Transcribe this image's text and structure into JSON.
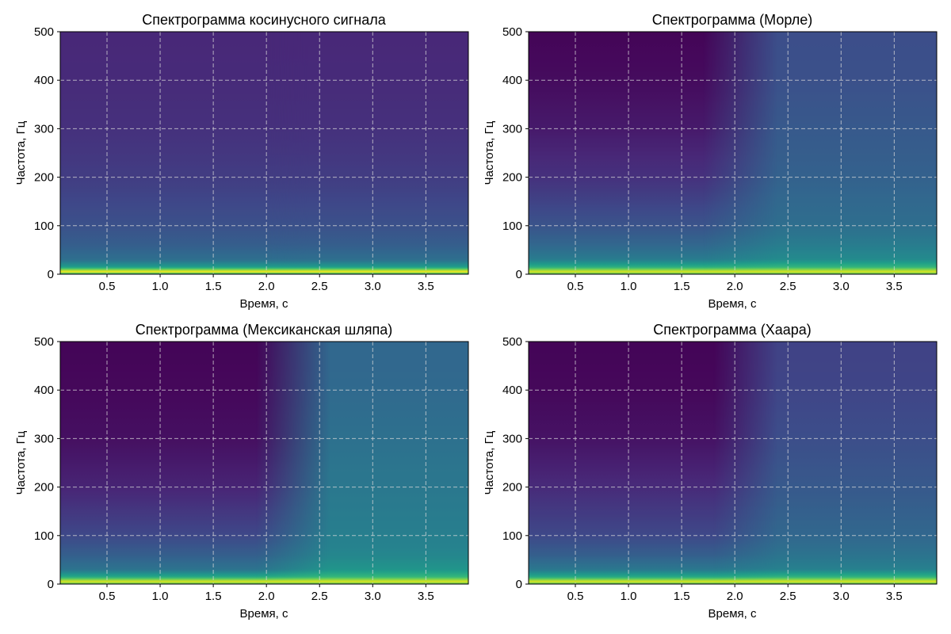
{
  "figure": {
    "colormap": "viridis",
    "colors": {
      "viridis": [
        "#440154",
        "#482878",
        "#3e4989",
        "#31688e",
        "#26828e",
        "#1f9e89",
        "#35b779",
        "#6ece58",
        "#b5de2b",
        "#fde725"
      ],
      "grid": "#d9d9d9",
      "axis": "#000000"
    }
  },
  "chart_data": [
    {
      "type": "heatmap",
      "title": "Спектрограмма косинусного сигнала",
      "xlabel": "Время, с",
      "ylabel": "Частота, Гц",
      "xlim": [
        0.06,
        3.9
      ],
      "ylim": [
        0,
        500
      ],
      "xticks": [
        "0.5",
        "1.0",
        "1.5",
        "2.0",
        "2.5",
        "3.0",
        "3.5"
      ],
      "yticks": [
        "0",
        "100",
        "200",
        "300",
        "400",
        "500"
      ],
      "grid": true,
      "intensity_profile": {
        "description": "time-invariant",
        "frequency_hz": [
          0,
          5,
          15,
          30,
          60,
          100,
          200,
          300,
          400,
          500
        ],
        "intensity_early": [
          0.6,
          1.0,
          0.55,
          0.36,
          0.3,
          0.25,
          0.18,
          0.14,
          0.12,
          0.11
        ],
        "intensity_late": [
          0.6,
          1.0,
          0.55,
          0.36,
          0.3,
          0.25,
          0.18,
          0.14,
          0.12,
          0.11
        ],
        "transition_time_s": [
          2.0,
          2.4
        ]
      }
    },
    {
      "type": "heatmap",
      "title": "Спектрограмма (Морле)",
      "xlabel": "Время, с",
      "ylabel": "Частота, Гц",
      "xlim": [
        0.06,
        3.9
      ],
      "ylim": [
        0,
        500
      ],
      "xticks": [
        "0.5",
        "1.0",
        "1.5",
        "2.0",
        "2.5",
        "3.0",
        "3.5"
      ],
      "yticks": [
        "0",
        "100",
        "200",
        "300",
        "400",
        "500"
      ],
      "grid": true,
      "intensity_profile": {
        "frequency_hz": [
          0,
          5,
          15,
          30,
          60,
          100,
          200,
          300,
          400,
          500
        ],
        "intensity_early": [
          0.7,
          0.95,
          0.62,
          0.42,
          0.33,
          0.26,
          0.14,
          0.07,
          0.03,
          0.01
        ],
        "intensity_late": [
          0.7,
          0.95,
          0.65,
          0.48,
          0.42,
          0.36,
          0.31,
          0.28,
          0.25,
          0.24
        ],
        "transition_time_s": [
          1.7,
          2.4
        ]
      }
    },
    {
      "type": "heatmap",
      "title": "Спектрограмма (Мексиканская шляпа)",
      "xlabel": "Время, с",
      "ylabel": "Частота, Гц",
      "xlim": [
        0.06,
        3.9
      ],
      "ylim": [
        0,
        500
      ],
      "xticks": [
        "0.5",
        "1.0",
        "1.5",
        "2.0",
        "2.5",
        "3.0",
        "3.5"
      ],
      "yticks": [
        "0",
        "100",
        "200",
        "300",
        "400",
        "500"
      ],
      "grid": true,
      "intensity_profile": {
        "frequency_hz": [
          0,
          5,
          15,
          30,
          60,
          100,
          200,
          300,
          400,
          500
        ],
        "intensity_early": [
          0.72,
          0.95,
          0.6,
          0.38,
          0.3,
          0.22,
          0.1,
          0.04,
          0.02,
          0.01
        ],
        "intensity_late": [
          0.72,
          0.95,
          0.66,
          0.52,
          0.46,
          0.43,
          0.4,
          0.37,
          0.34,
          0.33
        ],
        "transition_time_s": [
          1.9,
          2.6
        ]
      }
    },
    {
      "type": "heatmap",
      "title": "Спектрограмма (Хаара)",
      "xlabel": "Время, с",
      "ylabel": "Частота, Гц",
      "xlim": [
        0.06,
        3.9
      ],
      "ylim": [
        0,
        500
      ],
      "xticks": [
        "0.5",
        "1.0",
        "1.5",
        "2.0",
        "2.5",
        "3.0",
        "3.5"
      ],
      "yticks": [
        "0",
        "100",
        "200",
        "300",
        "400",
        "500"
      ],
      "grid": true,
      "intensity_profile": {
        "frequency_hz": [
          0,
          5,
          15,
          30,
          60,
          100,
          200,
          300,
          400,
          500
        ],
        "intensity_early": [
          0.7,
          0.95,
          0.6,
          0.4,
          0.3,
          0.22,
          0.12,
          0.05,
          0.02,
          0.01
        ],
        "intensity_late": [
          0.7,
          0.95,
          0.64,
          0.44,
          0.38,
          0.33,
          0.28,
          0.24,
          0.21,
          0.2
        ],
        "transition_time_s": [
          1.8,
          2.4
        ]
      }
    }
  ]
}
